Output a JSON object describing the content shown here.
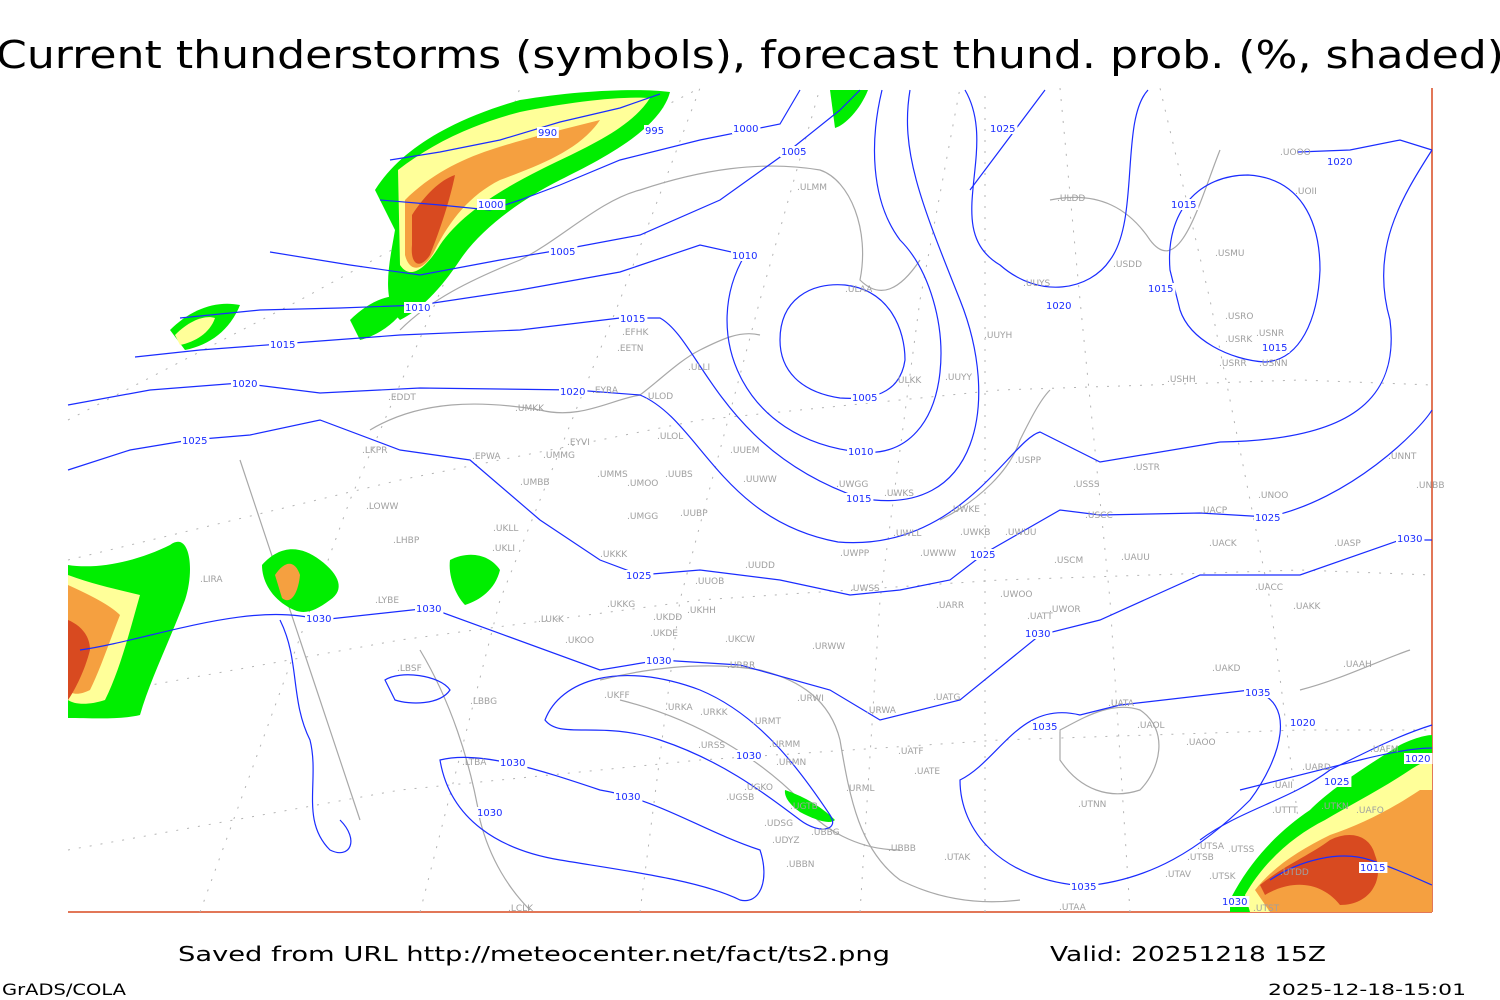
{
  "title": "Current thunderstorms (symbols), forecast thund. prob. (%, shaded)",
  "footer": {
    "saved_from": "Saved from URL http://meteocenter.net/fact/ts2.png",
    "valid": "Valid: 20251218 15Z",
    "software": "GrADS/COLA",
    "timestamp": "2025-12-18-15:01"
  },
  "colors": {
    "isobar": "#1a2cff",
    "coastline": "#a8a8a8",
    "station": "#a0a0a0",
    "prob_low": "#00ee00",
    "prob_mid": "#ffff99",
    "prob_high": "#f5a040",
    "prob_max": "#d84a20"
  },
  "isobar_labels": [
    "990",
    "995",
    "1000",
    "1000",
    "1005",
    "1005",
    "1010",
    "1010",
    "1015",
    "1015",
    "1005",
    "1010",
    "1015",
    "1020",
    "1020",
    "1025",
    "1020",
    "1015",
    "1020",
    "1015",
    "1015",
    "1020",
    "1025",
    "1025",
    "1025",
    "1030",
    "1025",
    "1030",
    "1030",
    "1030",
    "1030",
    "1030",
    "1030",
    "1030",
    "1030",
    "1035",
    "1035",
    "1035",
    "1025",
    "1020",
    "1015",
    "1030"
  ],
  "stations": [
    "ULMM",
    "ULDD",
    "UOOO",
    "UOII",
    "USMU",
    "USDD",
    "UUYS",
    "ULAA",
    "USRO",
    "USNR",
    "USRK",
    "USRR",
    "USNN",
    "UUYH",
    "USHH",
    "EFHK",
    "EETN",
    "ULLI",
    "ULKK",
    "UUYY",
    "EDDT",
    "EYVI",
    "EYRA",
    "ULOD",
    "UMKK",
    "ULOL",
    "UUEM",
    "LKPR",
    "EPWA",
    "UMMG",
    "USPP",
    "USTR",
    "UMMS",
    "UMOO",
    "UUBS",
    "UUWW",
    "UMBB",
    "USSS",
    "UWGG",
    "UWKS",
    "UNNT",
    "UNBB",
    "UNOO",
    "UACP",
    "USCC",
    "UWKE",
    "UWKB",
    "UWUU",
    "LOWW",
    "UMGG",
    "UUBP",
    "UKLL",
    "UKLI",
    "LHBP",
    "UWPP",
    "UWLL",
    "UWWW",
    "USCM",
    "UAUU",
    "UACK",
    "UASP",
    "UKKK",
    "UUDD",
    "UUOB",
    "LIRA",
    "LYBE",
    "UWSS",
    "UARR",
    "UWOO",
    "UWOR",
    "UACC",
    "UAKK",
    "UKKG",
    "UKDD",
    "UKHH",
    "LUKK",
    "UATT",
    "UKDE",
    "UKOO",
    "UKCW",
    "URWW",
    "URRR",
    "UAKD",
    "UAAH",
    "LBSF",
    "UKFF",
    "URKA",
    "URKK",
    "URWI",
    "URWA",
    "UATG",
    "URMT",
    "UATA",
    "UAOL",
    "URMM",
    "URSS",
    "UATF",
    "UAOO",
    "URMN",
    "LBBG",
    "LTBA",
    "UATE",
    "UAFM",
    "UARD",
    "UAII",
    "URML",
    "UGKO",
    "UGSB",
    "UGTB",
    "UTTT",
    "UTKN",
    "UAFO",
    "UTNN",
    "UDSG",
    "UBBG",
    "UDYZ",
    "UTSA",
    "UTSS",
    "UBBB",
    "UTAK",
    "UTSB",
    "UBBN",
    "UTAV",
    "UTSK",
    "UTDD",
    "LCLK",
    "UTAA",
    "UTST"
  ]
}
